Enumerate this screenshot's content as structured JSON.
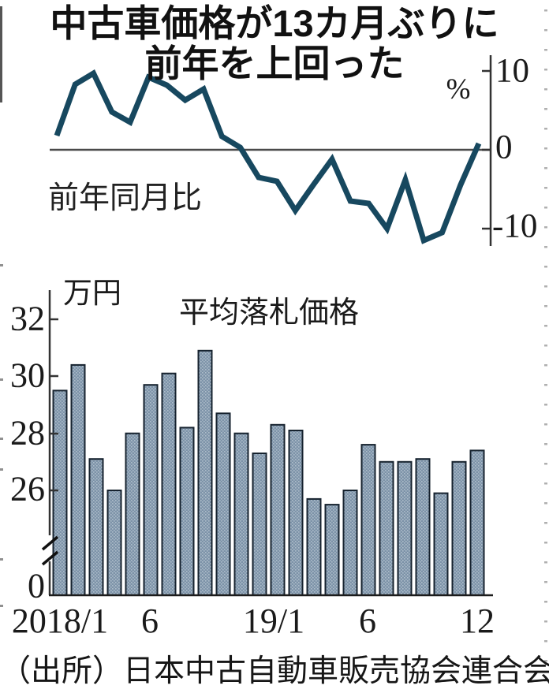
{
  "title": {
    "line1": "中古車価格が13カ月ぶりに",
    "line2": "前年を上回った"
  },
  "line_chart": {
    "label": "前年同月比",
    "unit": "%",
    "yticks": [
      "10",
      "0",
      "-10"
    ]
  },
  "bar_chart": {
    "unit_label": "万円",
    "title": "平均落札価格",
    "yticks": [
      "32",
      "30",
      "28",
      "26",
      "0"
    ],
    "xticks": [
      "2018/1",
      "6",
      "19/1",
      "6",
      "12"
    ]
  },
  "source": "（出所）日本中古自動車販売協会連合会",
  "colors": {
    "line": "#17485f",
    "bar_fill": "#7d93a9",
    "bar_dot": "#aebdca",
    "bar_outline": "#16222e",
    "axis": "#333333",
    "zero_line": "#4a4a4a",
    "edge_mark": "#b0b0b0"
  },
  "chart_data": [
    {
      "type": "line",
      "title": "前年同月比",
      "ylabel": "%",
      "ylim": [
        -13,
        11
      ],
      "yticks": [
        10,
        0,
        -10
      ],
      "grid": false,
      "x": [
        "2018/1",
        "2018/2",
        "2018/3",
        "2018/4",
        "2018/5",
        "2018/6",
        "2018/7",
        "2018/8",
        "2018/9",
        "2018/10",
        "2018/11",
        "2018/12",
        "2019/1",
        "2019/2",
        "2019/3",
        "2019/4",
        "2019/5",
        "2019/6",
        "2019/7",
        "2019/8",
        "2019/9",
        "2019/10",
        "2019/11",
        "2019/12"
      ],
      "values": [
        1.8,
        8.3,
        9.7,
        4.8,
        3.5,
        9.2,
        8.2,
        6.3,
        7.7,
        1.7,
        0.3,
        -3.5,
        -4.0,
        -7.7,
        -4.4,
        -1.2,
        -6.5,
        -6.8,
        -10.0,
        -3.8,
        -11.5,
        -10.5,
        -4.5,
        0.8
      ]
    },
    {
      "type": "bar",
      "title": "平均落札価格",
      "ylabel": "万円",
      "ylim_shown": [
        26,
        32
      ],
      "axis_break": true,
      "yticks": [
        32,
        30,
        28,
        26,
        0
      ],
      "categories": [
        "2018/1",
        "2018/2",
        "2018/3",
        "2018/4",
        "2018/5",
        "2018/6",
        "2018/7",
        "2018/8",
        "2018/9",
        "2018/10",
        "2018/11",
        "2018/12",
        "2019/1",
        "2019/2",
        "2019/3",
        "2019/4",
        "2019/5",
        "2019/6",
        "2019/7",
        "2019/8",
        "2019/9",
        "2019/10",
        "2019/11",
        "2019/12"
      ],
      "values": [
        29.5,
        30.4,
        27.1,
        26.0,
        28.0,
        29.7,
        30.1,
        28.2,
        30.9,
        28.7,
        28.0,
        27.3,
        28.3,
        28.1,
        25.7,
        25.5,
        26.0,
        27.6,
        27.0,
        27.0,
        27.1,
        25.9,
        27.0,
        27.4
      ]
    }
  ]
}
